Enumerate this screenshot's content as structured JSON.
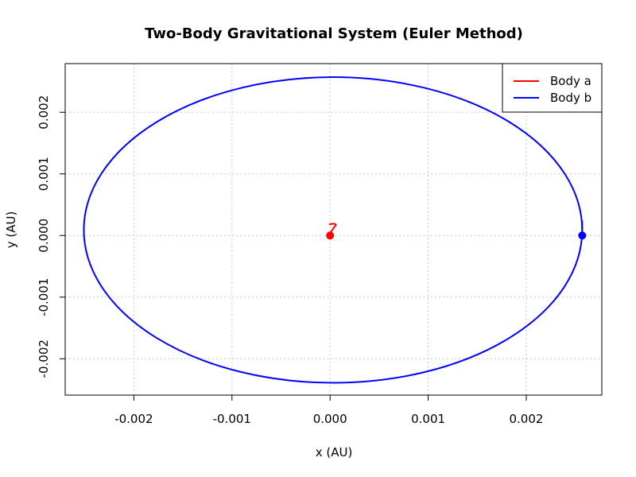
{
  "chart_data": {
    "type": "line",
    "title": "Two-Body Gravitational System (Euler Method)",
    "xlabel": "x (AU)",
    "ylabel": "y (AU)",
    "xlim": [
      -0.0027,
      0.00277
    ],
    "ylim": [
      -0.00259,
      0.00279
    ],
    "x_ticks": [
      -0.002,
      -0.001,
      0.0,
      0.001,
      0.002
    ],
    "x_tick_labels": [
      "-0.002",
      "-0.001",
      "0.000",
      "0.001",
      "0.002"
    ],
    "y_ticks": [
      -0.002,
      -0.001,
      0.0,
      0.001,
      0.002
    ],
    "y_tick_labels": [
      "-0.002",
      "-0.001",
      "0.000",
      "0.001",
      "0.002"
    ],
    "grid": true,
    "legend_position": "top-right",
    "series": [
      {
        "name": "Body a",
        "color": "#ff0000",
        "path": [
          [
            0.0,
            0.0
          ],
          [
            1e-05,
            6e-05
          ],
          [
            4e-05,
            0.00013
          ],
          [
            6e-05,
            0.00017
          ],
          [
            5e-05,
            0.00019
          ],
          [
            2e-05,
            0.00019
          ],
          [
            -1e-05,
            0.00018
          ]
        ],
        "marker": [
          0.0,
          0.0
        ]
      },
      {
        "name": "Body b",
        "color": "#0000ff",
        "ellipse": {
          "cx": 3e-05,
          "cy": 9e-05,
          "rx": 0.00254,
          "ry": 0.00248
        },
        "tail": [
          [
            0.00257,
            0.0
          ],
          [
            0.00257,
            0.00012
          ],
          [
            0.00257,
            0.00024
          ]
        ],
        "marker": [
          0.00257,
          0.0
        ]
      }
    ]
  }
}
